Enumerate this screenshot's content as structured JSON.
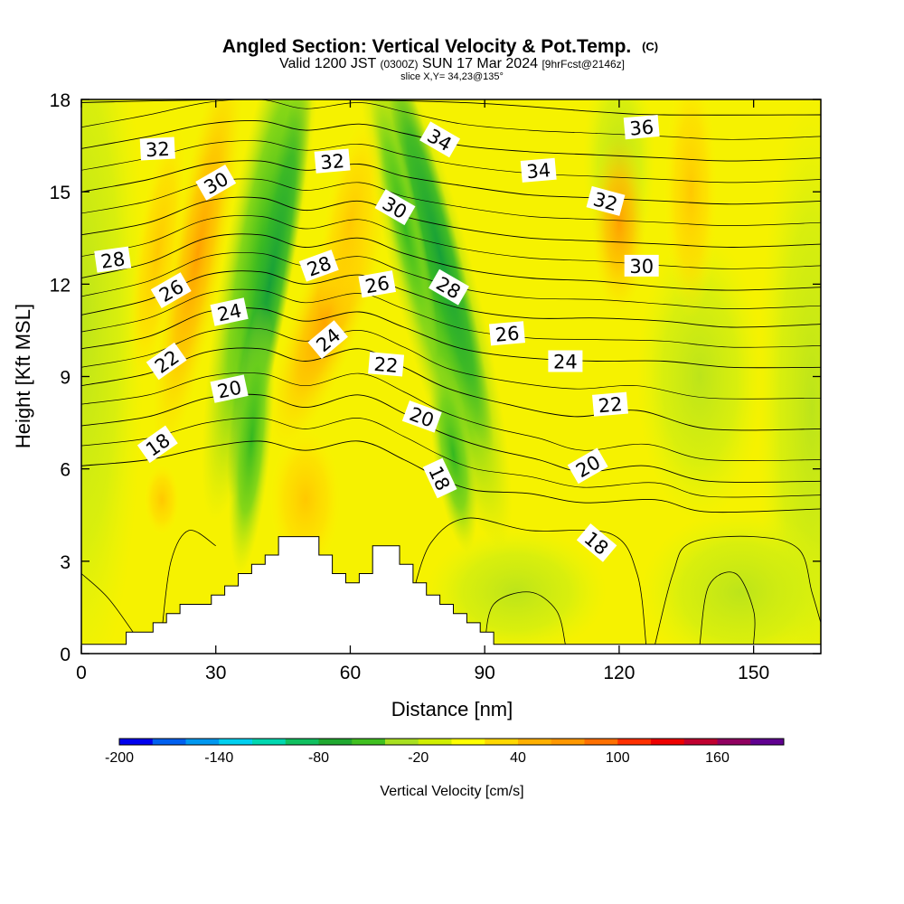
{
  "title": "Angled Section: Vertical Velocity & Pot.Temp.",
  "title_mark": "(C)",
  "subtitle": {
    "part1": "Valid 1200 JST",
    "utc": "(0300Z)",
    "part2": "SUN 17 Mar 2024",
    "fcst": "[9hrFcst@2146z]"
  },
  "slice_label": "slice X,Y= 34,23@135°",
  "chart_data": {
    "type": "heatmap",
    "xlabel": "Distance [nm]",
    "ylabel": "Height [Kft MSL]",
    "xlim": [
      0,
      165
    ],
    "ylim": [
      0,
      18
    ],
    "x_ticks": [
      "0",
      "30",
      "60",
      "90",
      "120",
      "150"
    ],
    "x_tick_values": [
      0,
      30,
      60,
      90,
      120,
      150
    ],
    "y_ticks": [
      "0",
      "3",
      "6",
      "9",
      "12",
      "15",
      "18"
    ],
    "y_tick_values": [
      0,
      3,
      6,
      9,
      12,
      15,
      18
    ],
    "colorbar": {
      "label": "Vertical Velocity [cm/s]",
      "min": -200,
      "max": 200,
      "step": 20,
      "tick_labels": [
        "-200",
        "-140",
        "-80",
        "-20",
        "40",
        "100",
        "160"
      ],
      "tick_values": [
        -200,
        -140,
        -80,
        -20,
        40,
        100,
        160
      ],
      "colors": [
        "#0000ee",
        "#0060f0",
        "#0098f0",
        "#00d0f0",
        "#00d8b0",
        "#10c060",
        "#20a830",
        "#40c020",
        "#a8e020",
        "#d0ee00",
        "#ffff00",
        "#ffd800",
        "#ffb000",
        "#ff9800",
        "#ff7000",
        "#ff3000",
        "#ee0000",
        "#c00030",
        "#900060",
        "#600090"
      ]
    },
    "terrain_kft": [
      [
        0,
        0.3
      ],
      [
        10,
        0.3
      ],
      [
        10,
        0.7
      ],
      [
        16,
        0.7
      ],
      [
        16,
        1.0
      ],
      [
        19,
        1.0
      ],
      [
        19,
        1.3
      ],
      [
        22,
        1.3
      ],
      [
        22,
        1.6
      ],
      [
        29,
        1.6
      ],
      [
        29,
        1.9
      ],
      [
        32,
        1.9
      ],
      [
        32,
        2.2
      ],
      [
        35,
        2.2
      ],
      [
        35,
        2.6
      ],
      [
        38,
        2.6
      ],
      [
        38,
        2.9
      ],
      [
        41,
        2.9
      ],
      [
        41,
        3.2
      ],
      [
        44,
        3.2
      ],
      [
        44,
        3.8
      ],
      [
        53,
        3.8
      ],
      [
        53,
        3.2
      ],
      [
        56,
        3.2
      ],
      [
        56,
        2.6
      ],
      [
        59,
        2.6
      ],
      [
        59,
        2.3
      ],
      [
        62,
        2.3
      ],
      [
        62,
        2.6
      ],
      [
        65,
        2.6
      ],
      [
        65,
        3.5
      ],
      [
        71,
        3.5
      ],
      [
        71,
        2.9
      ],
      [
        74,
        2.9
      ],
      [
        74,
        2.3
      ],
      [
        77,
        2.3
      ],
      [
        77,
        1.9
      ],
      [
        80,
        1.9
      ],
      [
        80,
        1.6
      ],
      [
        83,
        1.6
      ],
      [
        83,
        1.3
      ],
      [
        86,
        1.3
      ],
      [
        86,
        1.0
      ],
      [
        89,
        1.0
      ],
      [
        89,
        0.7
      ],
      [
        92,
        0.7
      ],
      [
        92,
        0.3
      ],
      [
        165,
        0.3
      ]
    ],
    "theta_contours": [
      {
        "value": 18,
        "points": [
          [
            0,
            6.1
          ],
          [
            15,
            6.3
          ],
          [
            28,
            6.7
          ],
          [
            40,
            6.9
          ],
          [
            50,
            6.6
          ],
          [
            62,
            6.9
          ],
          [
            72,
            6.3
          ],
          [
            80,
            5.7
          ],
          [
            88,
            5.3
          ],
          [
            100,
            5.2
          ],
          [
            112,
            4.9
          ],
          [
            128,
            5.0
          ],
          [
            140,
            4.6
          ],
          [
            165,
            4.7
          ]
        ]
      },
      {
        "value": 20,
        "points": [
          [
            0,
            7.4
          ],
          [
            15,
            7.7
          ],
          [
            28,
            8.3
          ],
          [
            40,
            8.4
          ],
          [
            50,
            8.0
          ],
          [
            62,
            8.4
          ],
          [
            72,
            7.8
          ],
          [
            80,
            7.2
          ],
          [
            90,
            6.7
          ],
          [
            102,
            6.3
          ],
          [
            112,
            5.9
          ],
          [
            126,
            6.1
          ],
          [
            140,
            5.6
          ],
          [
            165,
            5.6
          ]
        ]
      },
      {
        "value": 22,
        "points": [
          [
            0,
            8.7
          ],
          [
            15,
            9.1
          ],
          [
            28,
            9.8
          ],
          [
            40,
            9.9
          ],
          [
            50,
            9.5
          ],
          [
            62,
            9.9
          ],
          [
            72,
            9.3
          ],
          [
            82,
            8.6
          ],
          [
            95,
            8.1
          ],
          [
            110,
            7.7
          ],
          [
            124,
            7.9
          ],
          [
            140,
            7.3
          ],
          [
            165,
            7.3
          ]
        ]
      },
      {
        "value": 24,
        "points": [
          [
            0,
            9.9
          ],
          [
            15,
            10.3
          ],
          [
            28,
            11.1
          ],
          [
            40,
            11.2
          ],
          [
            50,
            10.8
          ],
          [
            62,
            11.1
          ],
          [
            72,
            10.6
          ],
          [
            85,
            9.9
          ],
          [
            100,
            9.6
          ],
          [
            115,
            9.5
          ],
          [
            130,
            9.5
          ],
          [
            145,
            9.3
          ],
          [
            165,
            9.3
          ]
        ]
      },
      {
        "value": 26,
        "points": [
          [
            0,
            11.0
          ],
          [
            15,
            11.5
          ],
          [
            28,
            12.3
          ],
          [
            40,
            12.4
          ],
          [
            50,
            12.0
          ],
          [
            62,
            12.3
          ],
          [
            72,
            11.8
          ],
          [
            85,
            11.2
          ],
          [
            100,
            10.9
          ],
          [
            115,
            10.9
          ],
          [
            130,
            10.8
          ],
          [
            145,
            10.6
          ],
          [
            165,
            10.7
          ]
        ]
      },
      {
        "value": 28,
        "points": [
          [
            0,
            12.2
          ],
          [
            15,
            12.7
          ],
          [
            28,
            13.5
          ],
          [
            40,
            13.6
          ],
          [
            50,
            13.2
          ],
          [
            62,
            13.5
          ],
          [
            72,
            13.0
          ],
          [
            85,
            12.5
          ],
          [
            100,
            12.2
          ],
          [
            115,
            12.1
          ],
          [
            130,
            11.9
          ],
          [
            145,
            11.8
          ],
          [
            165,
            11.9
          ]
        ]
      },
      {
        "value": 30,
        "points": [
          [
            0,
            13.6
          ],
          [
            15,
            14.0
          ],
          [
            28,
            14.7
          ],
          [
            40,
            14.8
          ],
          [
            50,
            14.4
          ],
          [
            62,
            14.7
          ],
          [
            72,
            14.2
          ],
          [
            85,
            13.8
          ],
          [
            100,
            13.5
          ],
          [
            115,
            13.4
          ],
          [
            130,
            13.3
          ],
          [
            145,
            13.2
          ],
          [
            165,
            13.3
          ]
        ]
      },
      {
        "value": 32,
        "points": [
          [
            0,
            15.0
          ],
          [
            15,
            15.4
          ],
          [
            28,
            15.9
          ],
          [
            40,
            16.0
          ],
          [
            50,
            15.7
          ],
          [
            62,
            15.9
          ],
          [
            72,
            15.5
          ],
          [
            85,
            15.2
          ],
          [
            100,
            14.9
          ],
          [
            115,
            14.8
          ],
          [
            130,
            14.7
          ],
          [
            145,
            14.6
          ],
          [
            165,
            14.7
          ]
        ]
      },
      {
        "value": 34,
        "points": [
          [
            0,
            16.4
          ],
          [
            15,
            16.8
          ],
          [
            28,
            17.2
          ],
          [
            40,
            17.3
          ],
          [
            50,
            17.0
          ],
          [
            62,
            17.2
          ],
          [
            72,
            16.9
          ],
          [
            85,
            16.5
          ],
          [
            100,
            16.3
          ],
          [
            115,
            16.2
          ],
          [
            130,
            16.1
          ],
          [
            145,
            16.0
          ],
          [
            165,
            16.1
          ]
        ]
      },
      {
        "value": 36,
        "points": [
          [
            0,
            17.9
          ],
          [
            40,
            18.0
          ],
          [
            85,
            17.9
          ],
          [
            115,
            17.6
          ],
          [
            130,
            17.5
          ],
          [
            165,
            17.5
          ]
        ]
      }
    ],
    "contour_labels": [
      {
        "text": "18",
        "x": 17,
        "y": 6.8,
        "angle": -35
      },
      {
        "text": "20",
        "x": 33,
        "y": 8.6,
        "angle": -12
      },
      {
        "text": "22",
        "x": 19,
        "y": 9.5,
        "angle": -35
      },
      {
        "text": "24",
        "x": 33,
        "y": 11.1,
        "angle": -12
      },
      {
        "text": "26",
        "x": 20,
        "y": 11.8,
        "angle": -30
      },
      {
        "text": "28",
        "x": 7,
        "y": 12.8,
        "angle": -8
      },
      {
        "text": "30",
        "x": 30,
        "y": 15.3,
        "angle": -30
      },
      {
        "text": "32",
        "x": 17,
        "y": 16.4,
        "angle": -3
      },
      {
        "text": "24",
        "x": 55,
        "y": 10.2,
        "angle": -40
      },
      {
        "text": "28",
        "x": 53,
        "y": 12.6,
        "angle": -20
      },
      {
        "text": "22",
        "x": 68,
        "y": 9.4,
        "angle": 5
      },
      {
        "text": "26",
        "x": 66,
        "y": 12.0,
        "angle": -10
      },
      {
        "text": "32",
        "x": 56,
        "y": 16.0,
        "angle": -5
      },
      {
        "text": "30",
        "x": 70,
        "y": 14.5,
        "angle": 30
      },
      {
        "text": "34",
        "x": 80,
        "y": 16.7,
        "angle": 30
      },
      {
        "text": "28",
        "x": 82,
        "y": 11.9,
        "angle": 30
      },
      {
        "text": "20",
        "x": 76,
        "y": 7.7,
        "angle": 20
      },
      {
        "text": "18",
        "x": 80,
        "y": 5.7,
        "angle": 65
      },
      {
        "text": "26",
        "x": 95,
        "y": 10.4,
        "angle": -5
      },
      {
        "text": "24",
        "x": 108,
        "y": 9.5,
        "angle": 0
      },
      {
        "text": "34",
        "x": 102,
        "y": 15.7,
        "angle": -5
      },
      {
        "text": "32",
        "x": 117,
        "y": 14.7,
        "angle": 15
      },
      {
        "text": "36",
        "x": 125,
        "y": 17.1,
        "angle": -5
      },
      {
        "text": "30",
        "x": 125,
        "y": 12.6,
        "angle": 0
      },
      {
        "text": "22",
        "x": 118,
        "y": 8.1,
        "angle": -5
      },
      {
        "text": "20",
        "x": 113,
        "y": 6.1,
        "angle": -30
      },
      {
        "text": "18",
        "x": 115,
        "y": 3.6,
        "angle": 40
      }
    ]
  }
}
